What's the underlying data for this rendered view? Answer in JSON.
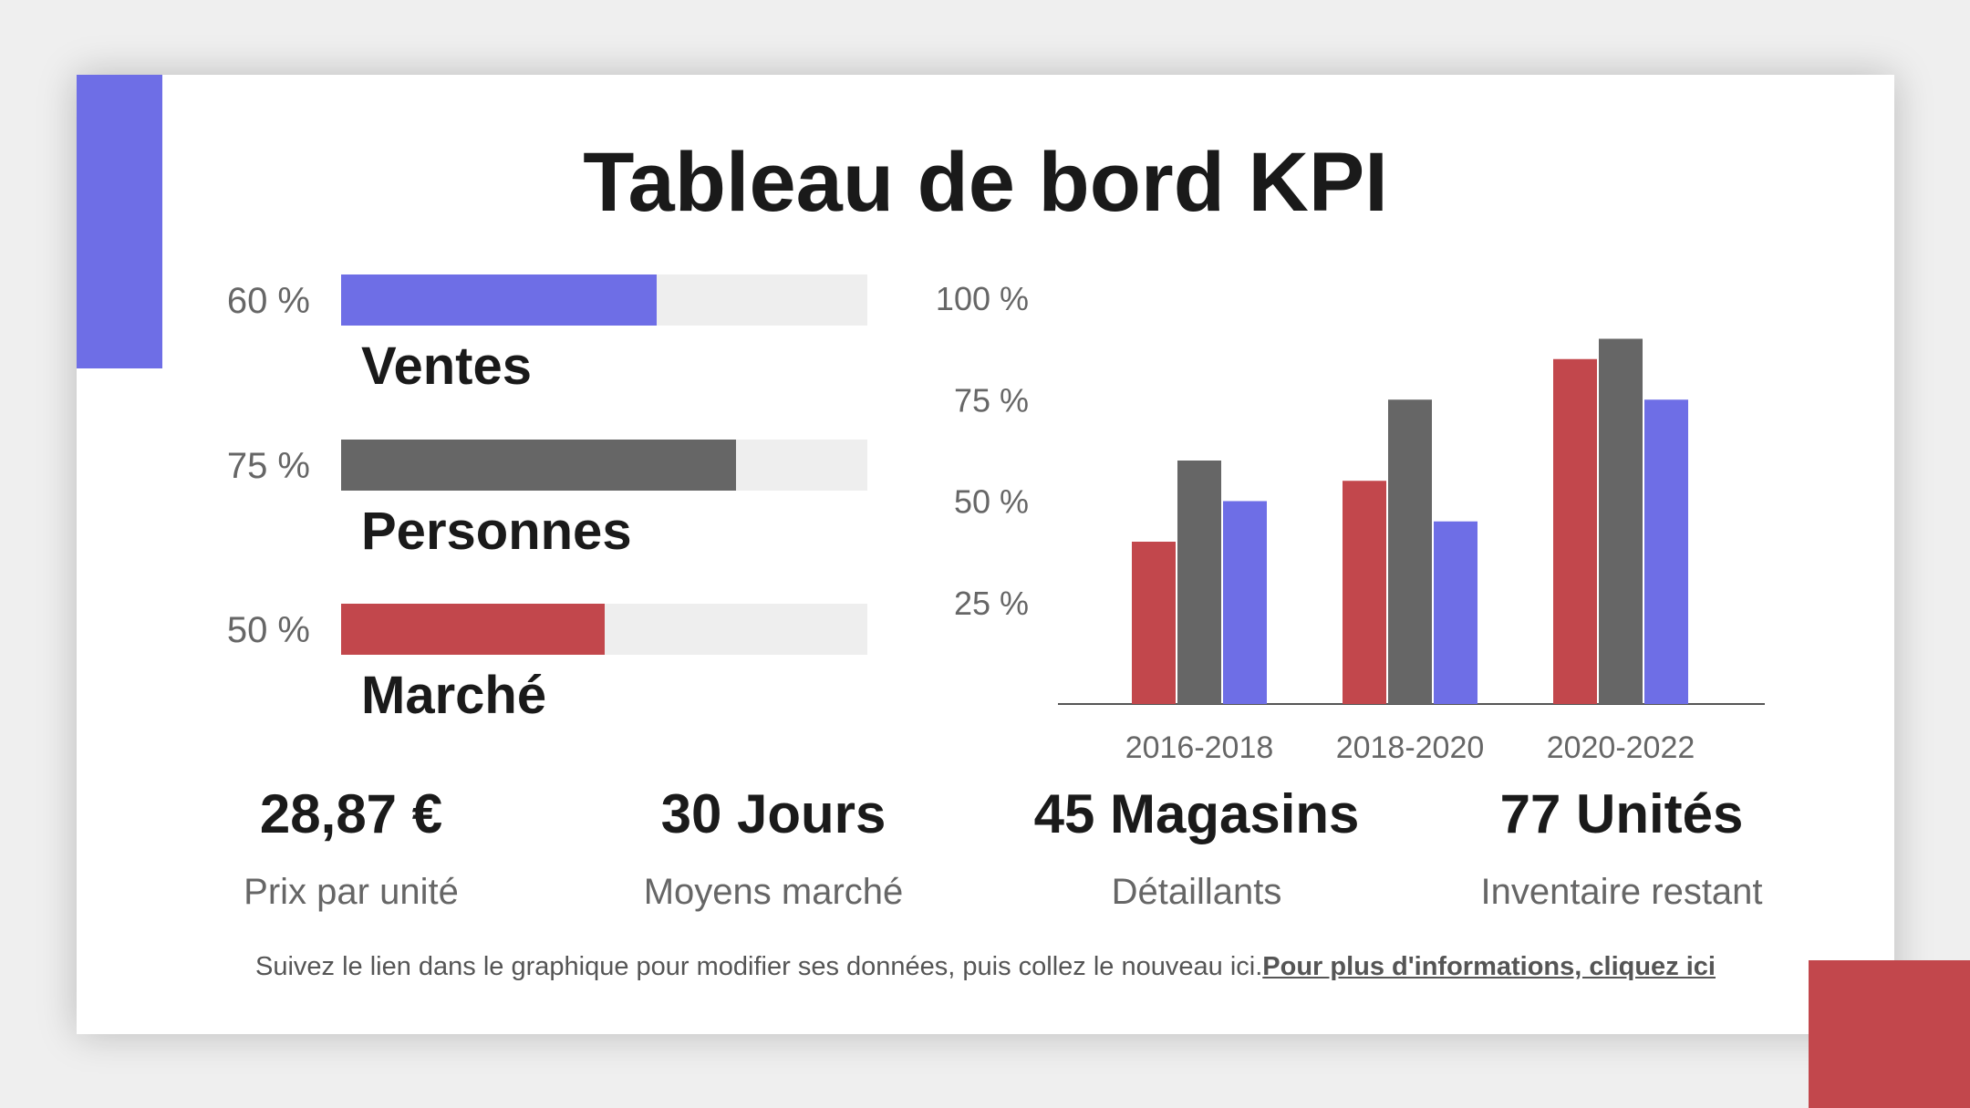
{
  "title": "Tableau de bord KPI",
  "colors": {
    "blue": "#6e6ee6",
    "gray": "#666666",
    "red": "#c2474c",
    "track": "#eeeeee"
  },
  "kpis": [
    {
      "percent_label": "60 %",
      "label": "Ventes",
      "value": 0.6,
      "color": "#6e6ee6"
    },
    {
      "percent_label": "75 %",
      "label": "Personnes",
      "value": 0.75,
      "color": "#666666"
    },
    {
      "percent_label": "50 %",
      "label": "Marché",
      "value": 0.5,
      "color": "#c2474c"
    }
  ],
  "chart_data": {
    "type": "bar",
    "categories": [
      "2016-2018",
      "2018-2020",
      "2020-2022"
    ],
    "series": [
      {
        "values": [
          40,
          55,
          85
        ],
        "color": "#c2474c"
      },
      {
        "values": [
          60,
          75,
          90
        ],
        "color": "#666666"
      },
      {
        "values": [
          50,
          45,
          75
        ],
        "color": "#6e6ee6"
      }
    ],
    "ylim": [
      0,
      100
    ],
    "yticks": [
      25,
      50,
      75,
      100
    ],
    "ytick_labels": [
      "25 %",
      "50 %",
      "75 %",
      "100 %"
    ],
    "grid": false,
    "legend": "none"
  },
  "stats": [
    {
      "value": "28,87 €",
      "label": "Prix par unité"
    },
    {
      "value": "30 Jours",
      "label": "Moyens marché"
    },
    {
      "value": "45 Magasins",
      "label": "Détaillants"
    },
    {
      "value": "77 Unités",
      "label": "Inventaire restant"
    }
  ],
  "footer": {
    "text": "Suivez le lien dans le graphique pour modifier ses données, puis collez le nouveau ici.",
    "link": "Pour plus d'informations, cliquez ici"
  }
}
